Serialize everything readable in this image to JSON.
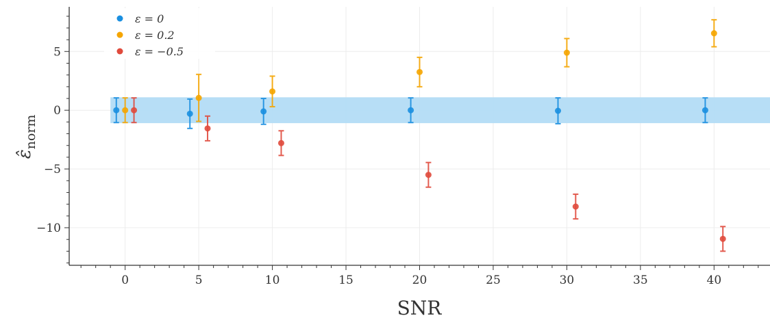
{
  "chart_data": {
    "type": "scatter",
    "xlabel": "SNR",
    "ylabel": "ε̂",
    "ylabel_sub": "norm",
    "xlim": [
      -3.8,
      43.8
    ],
    "ylim": [
      -13.2,
      8.8
    ],
    "xticks": [
      0,
      5,
      10,
      15,
      20,
      25,
      30,
      35,
      40
    ],
    "xtick_labels": [
      "0",
      "5",
      "10",
      "15",
      "20",
      "25",
      "30",
      "35",
      "40"
    ],
    "yticks": [
      -10,
      -5,
      0,
      5
    ],
    "ytick_labels": [
      "−10",
      "−5",
      "0",
      "5"
    ],
    "grid": true,
    "band": {
      "y_low": -1.1,
      "y_high": 1.1,
      "x_from": -1.0,
      "x_to": 43.8,
      "color": "#b3dcf5"
    },
    "legend": {
      "position": "top-left"
    },
    "series": [
      {
        "name": "ε = 0",
        "color": "#1a8fe0",
        "x": [
          -0.6,
          4.4,
          9.4,
          19.4,
          29.4,
          39.4
        ],
        "y": [
          0.0,
          -0.3,
          -0.1,
          0.0,
          -0.05,
          0.0
        ],
        "err": [
          1.05,
          1.25,
          1.1,
          1.05,
          1.1,
          1.05
        ]
      },
      {
        "name": "ε = 0.2",
        "color": "#f5a500",
        "x": [
          0.0,
          5.0,
          10.0,
          20.0,
          30.0,
          40.0
        ],
        "y": [
          0.0,
          1.05,
          1.6,
          3.25,
          4.9,
          6.55
        ],
        "err": [
          1.05,
          2.0,
          1.3,
          1.25,
          1.2,
          1.15
        ]
      },
      {
        "name": "ε = −0.5",
        "color": "#e04a3c",
        "x": [
          0.6,
          5.6,
          10.6,
          20.6,
          30.6,
          40.6
        ],
        "y": [
          0.0,
          -1.55,
          -2.8,
          -5.5,
          -8.2,
          -10.95
        ],
        "err": [
          1.05,
          1.05,
          1.05,
          1.05,
          1.05,
          1.05
        ]
      }
    ]
  }
}
